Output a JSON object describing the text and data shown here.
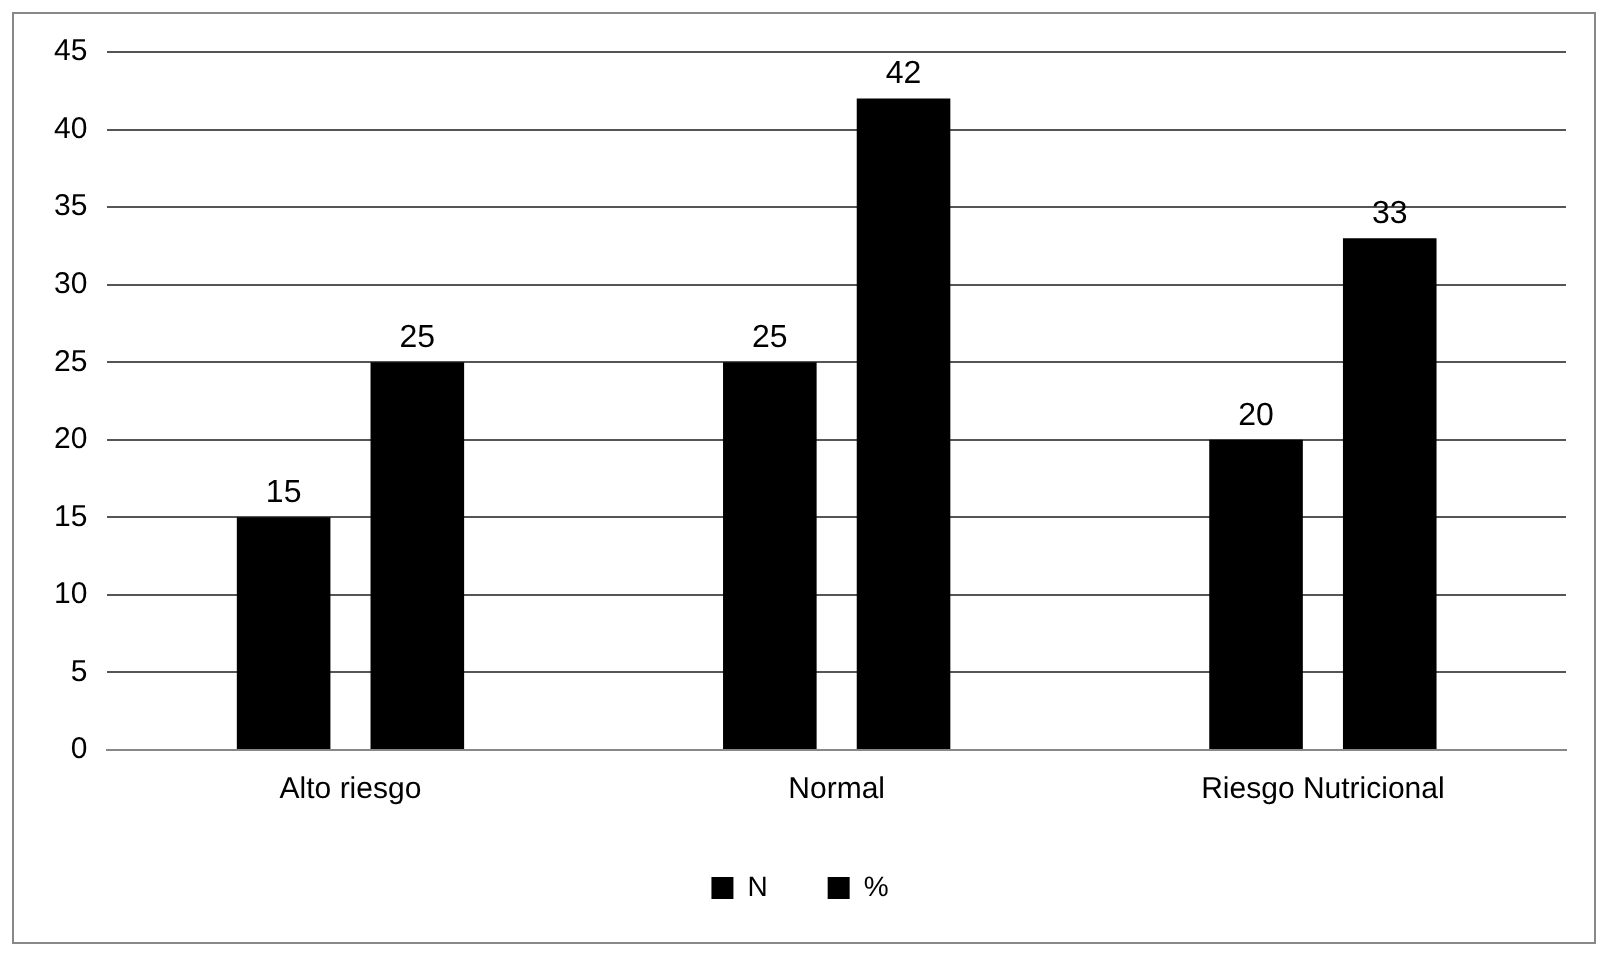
{
  "chart_data": {
    "type": "bar",
    "categories": [
      "Alto riesgo",
      "Normal",
      "Riesgo Nutricional"
    ],
    "series": [
      {
        "name": "N",
        "color": "#000000",
        "values": [
          15,
          25,
          20
        ]
      },
      {
        "name": "%",
        "color": "#000000",
        "values": [
          25,
          42,
          33
        ]
      }
    ],
    "ylim": [
      0,
      45
    ],
    "yticks": [
      0,
      5,
      10,
      15,
      20,
      25,
      30,
      35,
      40,
      45
    ],
    "grid": "y",
    "legend": "bottom",
    "data_labels": true
  }
}
